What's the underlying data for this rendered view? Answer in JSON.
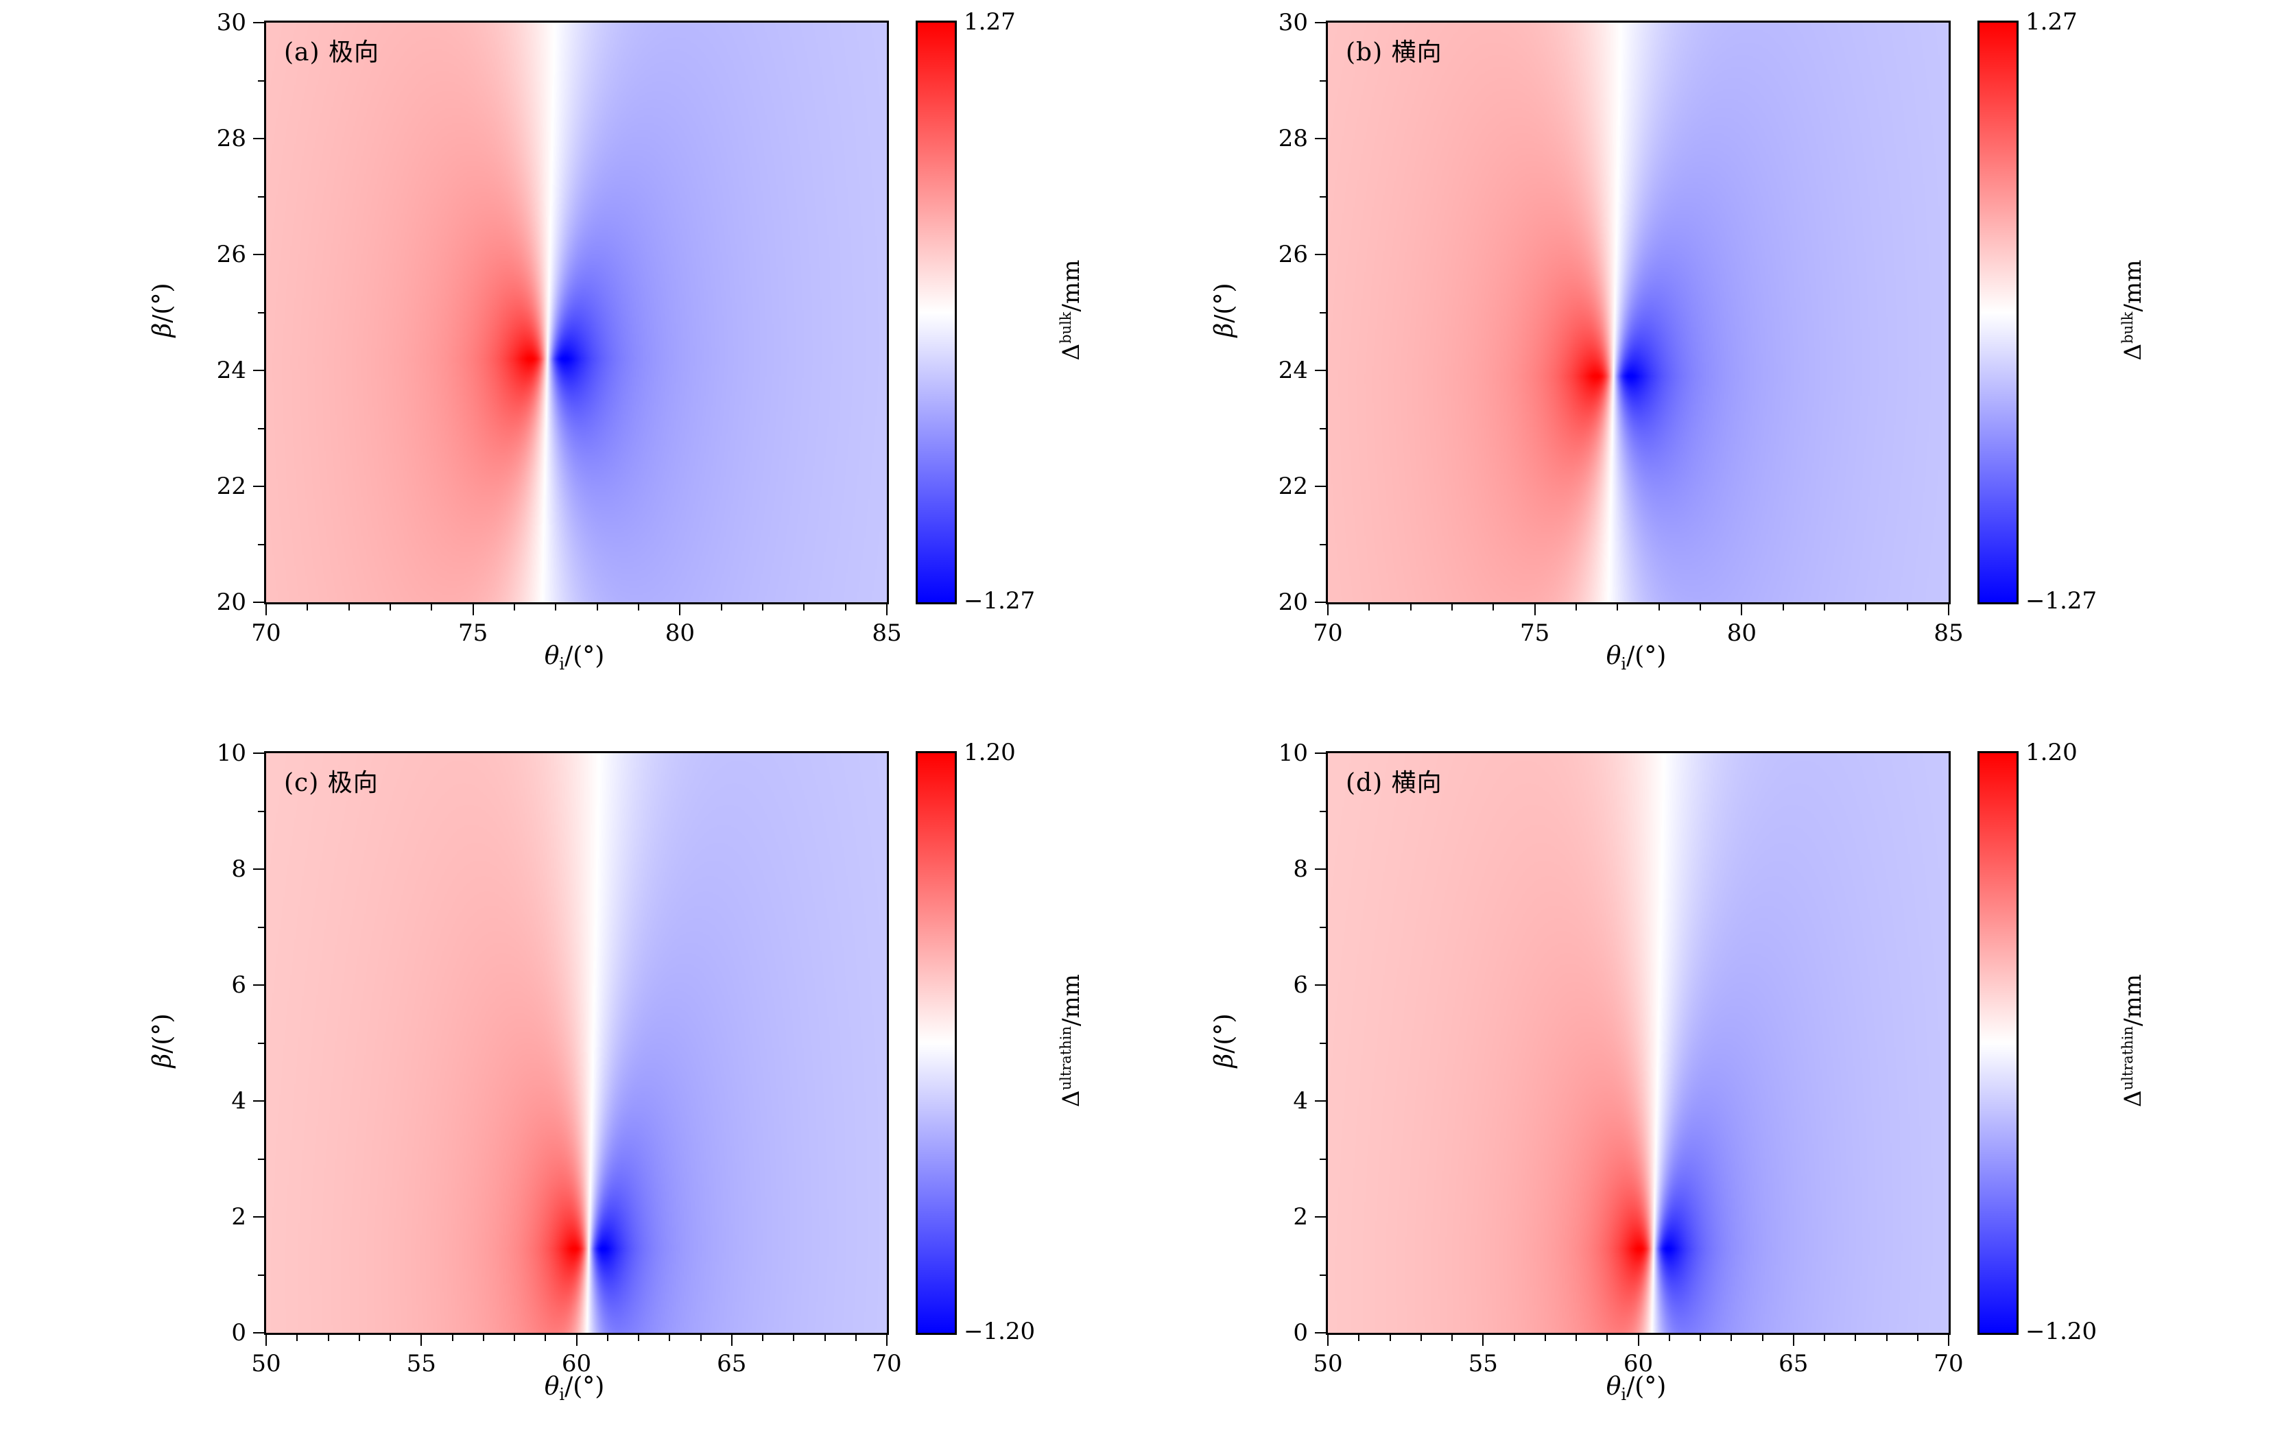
{
  "figure": {
    "background": "#ffffff",
    "colormap": "blue-white-red"
  },
  "chart_data": {
    "type": "heatmap",
    "layout": "2x2 grid of diverging red-white-blue angular shift maps",
    "panels": [
      {
        "id": "a",
        "label": "(a) 极向",
        "x_label_parts": {
          "sym": "θ",
          "sub": "i",
          "rest": "/(°)"
        },
        "y_label_parts": {
          "sym": "β",
          "rest": "/(°)"
        },
        "x_range": [
          70,
          85
        ],
        "y_range": [
          20,
          30
        ],
        "x_major_ticks": [
          70,
          75,
          80,
          85
        ],
        "x_minor_step": 1,
        "y_major_ticks": [
          20,
          22,
          24,
          26,
          28,
          30
        ],
        "y_minor_step": 1,
        "colorbar": {
          "max_label": "1.27",
          "min_label": "−1.27",
          "vmax": 1.27,
          "unit_parts": {
            "sym": "Δ",
            "sup": "bulk",
            "rest": "/mm"
          },
          "colors": [
            "#ff0000",
            "#ffffff",
            "#0000ff"
          ]
        },
        "field": {
          "center_x": 76.8,
          "center_y": 24.2,
          "gamma0": 0.4,
          "gamma_slope": 0.33,
          "tilt": 0.03,
          "bg_amp": 0.13,
          "bg_width": 2.5
        }
      },
      {
        "id": "b",
        "label": "(b) 横向",
        "x_label_parts": {
          "sym": "θ",
          "sub": "i",
          "rest": "/(°)"
        },
        "y_label_parts": {
          "sym": "β",
          "rest": "/(°)"
        },
        "x_range": [
          70,
          85
        ],
        "y_range": [
          20,
          30
        ],
        "x_major_ticks": [
          70,
          75,
          80,
          85
        ],
        "x_minor_step": 1,
        "y_major_ticks": [
          20,
          22,
          24,
          26,
          28,
          30
        ],
        "y_minor_step": 1,
        "colorbar": {
          "max_label": "1.27",
          "min_label": "−1.27",
          "vmax": 1.27,
          "unit_parts": {
            "sym": "Δ",
            "sup": "bulk",
            "rest": "/mm"
          },
          "colors": [
            "#ff0000",
            "#ffffff",
            "#0000ff"
          ]
        },
        "field": {
          "center_x": 76.9,
          "center_y": 23.9,
          "gamma0": 0.4,
          "gamma_slope": 0.33,
          "tilt": 0.03,
          "bg_amp": 0.13,
          "bg_width": 2.5
        }
      },
      {
        "id": "c",
        "label": "(c) 极向",
        "x_label_parts": {
          "sym": "θ",
          "sub": "i",
          "rest": "/(°)"
        },
        "y_label_parts": {
          "sym": "β",
          "rest": "/(°)"
        },
        "x_range": [
          50,
          70
        ],
        "y_range": [
          0,
          10
        ],
        "x_major_ticks": [
          50,
          55,
          60,
          65,
          70
        ],
        "x_minor_step": 1,
        "y_major_ticks": [
          0,
          2,
          4,
          6,
          8,
          10
        ],
        "y_minor_step": 1,
        "colorbar": {
          "max_label": "1.20",
          "min_label": "−1.20",
          "vmax": 1.2,
          "unit_parts": {
            "sym": "Δ",
            "sup": "ultrathin",
            "rest": "/mm"
          },
          "colors": [
            "#ff0000",
            "#ffffff",
            "#0000ff"
          ]
        },
        "field": {
          "center_x": 60.4,
          "center_y": 1.45,
          "gamma0": 0.45,
          "gamma_slope": 0.35,
          "tilt": 0.04,
          "bg_amp": 0.13,
          "bg_width": 3.0
        }
      },
      {
        "id": "d",
        "label": "(d) 横向",
        "x_label_parts": {
          "sym": "θ",
          "sub": "i",
          "rest": "/(°)"
        },
        "y_label_parts": {
          "sym": "β",
          "rest": "/(°)"
        },
        "x_range": [
          50,
          70
        ],
        "y_range": [
          0,
          10
        ],
        "x_major_ticks": [
          50,
          55,
          60,
          65,
          70
        ],
        "x_minor_step": 1,
        "y_major_ticks": [
          0,
          2,
          4,
          6,
          8,
          10
        ],
        "y_minor_step": 1,
        "colorbar": {
          "max_label": "1.20",
          "min_label": "−1.20",
          "vmax": 1.2,
          "unit_parts": {
            "sym": "Δ",
            "sup": "ultrathin",
            "rest": "/mm"
          },
          "colors": [
            "#ff0000",
            "#ffffff",
            "#0000ff"
          ]
        },
        "field": {
          "center_x": 60.5,
          "center_y": 1.45,
          "gamma0": 0.45,
          "gamma_slope": 0.35,
          "tilt": 0.04,
          "bg_amp": 0.13,
          "bg_width": 3.0
        }
      }
    ]
  }
}
